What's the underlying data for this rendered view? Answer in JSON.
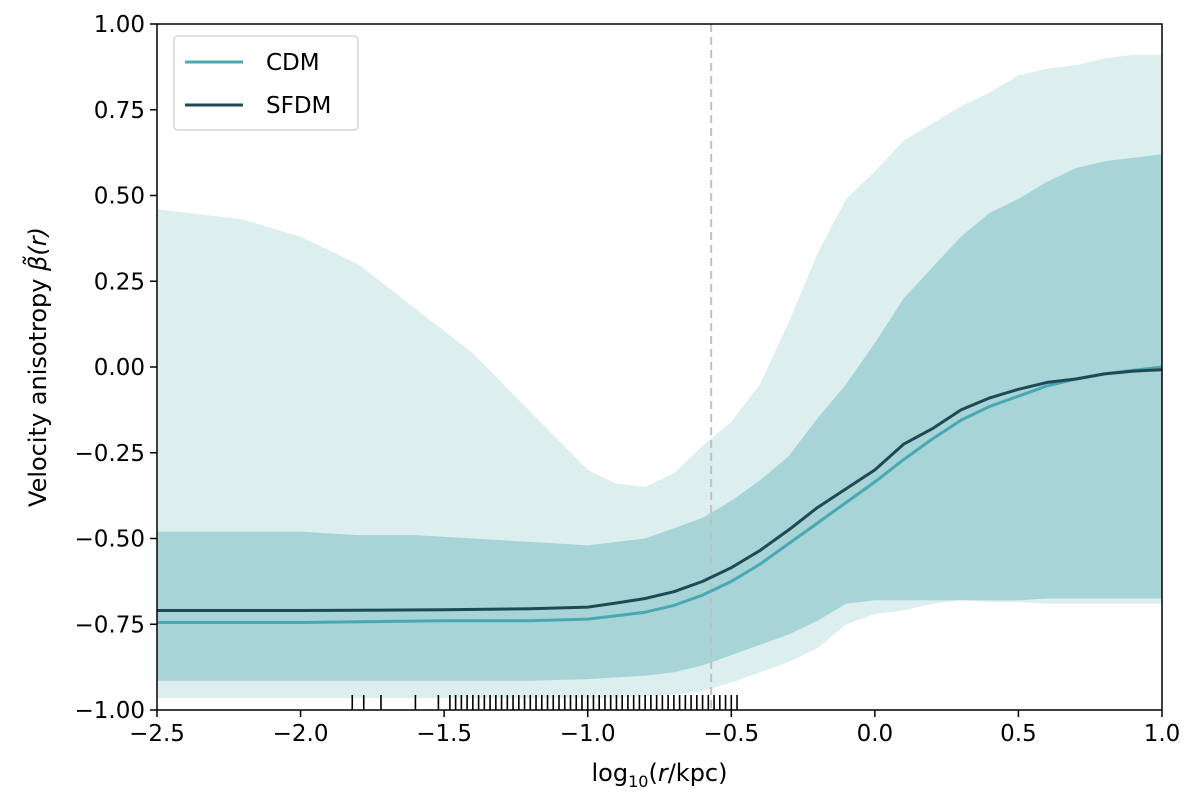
{
  "chart_data": {
    "type": "line",
    "xlabel_parts": {
      "prefix": "log",
      "sub": "10",
      "open": "(",
      "var": "r",
      "unit": "/kpc)"
    },
    "ylabel_parts": {
      "text": "Velocity anisotropy ",
      "symbol": "β̃",
      "arg": "(r)"
    },
    "xlim": [
      -2.5,
      1.0
    ],
    "ylim": [
      -1.0,
      1.0
    ],
    "xticks": [
      -2.5,
      -2.0,
      -1.5,
      -1.0,
      -0.5,
      0.0,
      0.5,
      1.0
    ],
    "xtick_labels": [
      "−2.5",
      "−2.0",
      "−1.5",
      "−1.0",
      "−0.5",
      "0.0",
      "0.5",
      "1.0"
    ],
    "yticks": [
      -1.0,
      -0.75,
      -0.5,
      -0.25,
      0.0,
      0.25,
      0.5,
      0.75,
      1.0
    ],
    "ytick_labels": [
      "−1.00",
      "−0.75",
      "−0.50",
      "−0.25",
      "0.00",
      "0.25",
      "0.50",
      "0.75",
      "1.00"
    ],
    "vline_x": -0.57,
    "legend_position": "top-left",
    "colors": {
      "cdm": "#4aa8b0",
      "sfdm": "#1f4a55",
      "band_inner": "#a7d4d7",
      "band_outer": "#ddeeef",
      "vline": "#c0c0c0"
    },
    "series": [
      {
        "name": "CDM",
        "x": [
          -2.5,
          -2.0,
          -1.5,
          -1.2,
          -1.0,
          -0.9,
          -0.8,
          -0.7,
          -0.6,
          -0.5,
          -0.4,
          -0.3,
          -0.2,
          -0.1,
          0.0,
          0.1,
          0.2,
          0.3,
          0.4,
          0.5,
          0.6,
          0.7,
          0.8,
          0.9,
          1.0
        ],
        "y": [
          -0.745,
          -0.745,
          -0.74,
          -0.74,
          -0.735,
          -0.725,
          -0.715,
          -0.695,
          -0.665,
          -0.625,
          -0.575,
          -0.515,
          -0.455,
          -0.395,
          -0.335,
          -0.27,
          -0.21,
          -0.155,
          -0.115,
          -0.085,
          -0.055,
          -0.035,
          -0.02,
          -0.01,
          0.0
        ]
      },
      {
        "name": "SFDM",
        "x": [
          -2.5,
          -2.0,
          -1.5,
          -1.2,
          -1.0,
          -0.9,
          -0.8,
          -0.7,
          -0.6,
          -0.5,
          -0.4,
          -0.3,
          -0.2,
          -0.1,
          0.0,
          0.1,
          0.2,
          0.3,
          0.4,
          0.5,
          0.6,
          0.7,
          0.8,
          0.9,
          1.0
        ],
        "y": [
          -0.71,
          -0.71,
          -0.708,
          -0.705,
          -0.7,
          -0.688,
          -0.675,
          -0.655,
          -0.625,
          -0.585,
          -0.535,
          -0.475,
          -0.41,
          -0.355,
          -0.3,
          -0.225,
          -0.18,
          -0.125,
          -0.09,
          -0.065,
          -0.045,
          -0.035,
          -0.02,
          -0.012,
          -0.008
        ]
      }
    ],
    "bands": {
      "x": [
        -2.5,
        -2.2,
        -2.0,
        -1.8,
        -1.6,
        -1.4,
        -1.2,
        -1.0,
        -0.9,
        -0.8,
        -0.7,
        -0.6,
        -0.5,
        -0.4,
        -0.3,
        -0.2,
        -0.1,
        0.0,
        0.1,
        0.2,
        0.3,
        0.4,
        0.5,
        0.6,
        0.7,
        0.8,
        0.9,
        1.0
      ],
      "outer_upper": [
        0.46,
        0.43,
        0.38,
        0.3,
        0.17,
        0.04,
        -0.13,
        -0.3,
        -0.34,
        -0.35,
        -0.31,
        -0.23,
        -0.16,
        -0.05,
        0.13,
        0.33,
        0.49,
        0.57,
        0.66,
        0.71,
        0.76,
        0.8,
        0.85,
        0.87,
        0.88,
        0.9,
        0.91,
        0.91
      ],
      "inner_upper": [
        -0.48,
        -0.48,
        -0.48,
        -0.49,
        -0.49,
        -0.5,
        -0.51,
        -0.52,
        -0.51,
        -0.5,
        -0.47,
        -0.44,
        -0.39,
        -0.33,
        -0.26,
        -0.15,
        -0.05,
        0.07,
        0.2,
        0.29,
        0.38,
        0.45,
        0.49,
        0.54,
        0.58,
        0.6,
        0.61,
        0.62
      ],
      "inner_lower": [
        -0.915,
        -0.915,
        -0.915,
        -0.915,
        -0.915,
        -0.915,
        -0.915,
        -0.91,
        -0.905,
        -0.9,
        -0.89,
        -0.87,
        -0.84,
        -0.81,
        -0.78,
        -0.74,
        -0.69,
        -0.68,
        -0.68,
        -0.68,
        -0.68,
        -0.68,
        -0.68,
        -0.675,
        -0.675,
        -0.675,
        -0.675,
        -0.675
      ],
      "outer_lower": [
        -0.965,
        -0.965,
        -0.965,
        -0.965,
        -0.965,
        -0.965,
        -0.965,
        -0.965,
        -0.965,
        -0.96,
        -0.955,
        -0.945,
        -0.92,
        -0.89,
        -0.86,
        -0.82,
        -0.75,
        -0.72,
        -0.71,
        -0.69,
        -0.68,
        -0.685,
        -0.685,
        -0.69,
        -0.69,
        -0.69,
        -0.69,
        -0.69
      ]
    },
    "rug_x": [
      -1.82,
      -1.78,
      -1.72,
      -1.6,
      -1.52,
      -1.48,
      -1.46,
      -1.44,
      -1.42,
      -1.4,
      -1.38,
      -1.36,
      -1.34,
      -1.32,
      -1.3,
      -1.28,
      -1.26,
      -1.24,
      -1.22,
      -1.2,
      -1.18,
      -1.16,
      -1.14,
      -1.12,
      -1.1,
      -1.08,
      -1.06,
      -1.04,
      -1.02,
      -1.0,
      -0.98,
      -0.96,
      -0.94,
      -0.92,
      -0.9,
      -0.88,
      -0.86,
      -0.84,
      -0.82,
      -0.8,
      -0.78,
      -0.76,
      -0.74,
      -0.72,
      -0.7,
      -0.68,
      -0.66,
      -0.64,
      -0.62,
      -0.6,
      -0.58,
      -0.56,
      -0.54,
      -0.52,
      -0.5,
      -0.48
    ]
  }
}
